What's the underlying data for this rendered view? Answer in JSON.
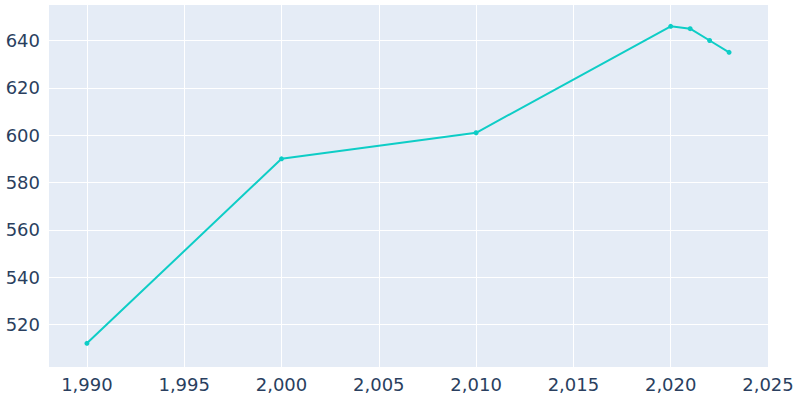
{
  "chart_data": {
    "type": "line",
    "x": [
      1990,
      2000,
      2010,
      2020,
      2021,
      2022,
      2023
    ],
    "values": [
      512,
      590,
      601,
      646,
      645,
      640,
      635
    ],
    "color": "#0ecdc6",
    "marker": "circle",
    "xlim": [
      1988,
      2025
    ],
    "xticks": [
      1990,
      1995,
      2000,
      2005,
      2010,
      2015,
      2020,
      2025
    ],
    "ylim": [
      502,
      655
    ],
    "yticks": [
      520,
      540,
      560,
      580,
      600,
      620,
      640
    ],
    "grid": true
  }
}
